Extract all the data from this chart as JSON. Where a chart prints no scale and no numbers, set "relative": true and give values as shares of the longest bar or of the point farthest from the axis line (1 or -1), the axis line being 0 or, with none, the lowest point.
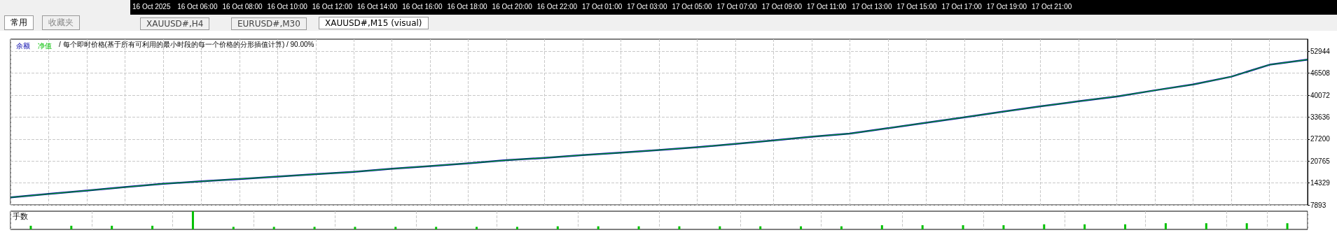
{
  "chart_data": [
    {
      "type": "other",
      "annotations": [
        "常用",
        "收藏夹",
        "XAUUSD#,H4",
        "EURUSD#,M30",
        "XAUUSD#,M15 (visual)",
        "16 Oct 2025",
        "16 Oct 06:00",
        "16 Oct 08:00",
        "16 Oct 10:00",
        "16 Oct 12:00",
        "16 Oct 14:00",
        "16 Oct 16:00",
        "16 Oct 18:00",
        "16 Oct 20:00",
        "16 Oct 22:00",
        "17 Oct 01:00",
        "17 Oct 03:00",
        "17 Oct 05:00",
        "17 Oct 07:00",
        "17 Oct 09:00",
        "17 Oct 11:00",
        "17 Oct 13:00",
        "17 Oct 15:00",
        "17 Oct 17:00",
        "17 Oct 19:00",
        "17 Oct 21:00"
      ]
    },
    {
      "type": "line",
      "annotations": [
        "/ 每个即时价格(基于所有可利用的最小时段的每一个价格的分形插值计算) / 90.00%"
      ],
      "legend": "top left",
      "marker": "none",
      "grid": true,
      "categories": [
        null,
        null,
        null,
        null,
        null,
        null,
        null,
        null,
        null,
        null,
        null,
        null,
        null,
        null,
        null,
        null,
        null,
        null,
        null,
        null,
        null,
        null,
        null,
        null,
        null,
        null,
        null,
        null,
        null,
        null,
        null,
        null,
        null,
        null,
        null
      ],
      "ylim": [
        7893,
        56500
      ],
      "yticks": [
        7893,
        14329,
        20765,
        27200,
        33636,
        40072,
        46508,
        52944
      ],
      "series": [
        {
          "name": "余额",
          "color": "#0000aa",
          "values": [
            10100,
            11100,
            12100,
            13100,
            14100,
            14800,
            15500,
            16200,
            16900,
            17600,
            18500,
            19300,
            20100,
            21000,
            21700,
            22500,
            23200,
            24000,
            24800,
            25800,
            26800,
            27900,
            28800,
            30400,
            32000,
            33600,
            35200,
            36800,
            38300,
            39700,
            41500,
            43200,
            45500,
            49000,
            50500
          ]
        },
        {
          "name": "净值",
          "color": "#00c000",
          "values": [
            10100,
            11100,
            12100,
            13100,
            14100,
            14800,
            15500,
            16200,
            16900,
            17600,
            18500,
            19300,
            20100,
            21000,
            21700,
            22500,
            23200,
            24000,
            24800,
            25800,
            26800,
            27900,
            28800,
            30400,
            32000,
            33600,
            35200,
            36800,
            38300,
            39700,
            41500,
            43200,
            45500,
            49000,
            50500
          ]
        }
      ]
    },
    {
      "type": "bar",
      "title": "手数",
      "relative": true,
      "grid": true,
      "color": "#00c000",
      "categories": [
        null,
        null,
        null,
        null,
        null,
        null,
        null,
        null,
        null,
        null,
        null,
        null,
        null,
        null,
        null,
        null,
        null,
        null,
        null,
        null,
        null,
        null,
        null,
        null,
        null,
        null,
        null,
        null,
        null,
        null,
        null,
        null
      ],
      "values": [
        0.2,
        0.2,
        0.2,
        0.2,
        1,
        0.14,
        0.14,
        0.14,
        0.14,
        0.14,
        0.14,
        0.14,
        0.14,
        0.17,
        0.17,
        0.17,
        0.17,
        0.17,
        0.17,
        0.17,
        0.17,
        0.23,
        0.23,
        0.23,
        0.23,
        0.28,
        0.28,
        0.28,
        0.34,
        0.34,
        0.34,
        0.34
      ]
    }
  ]
}
